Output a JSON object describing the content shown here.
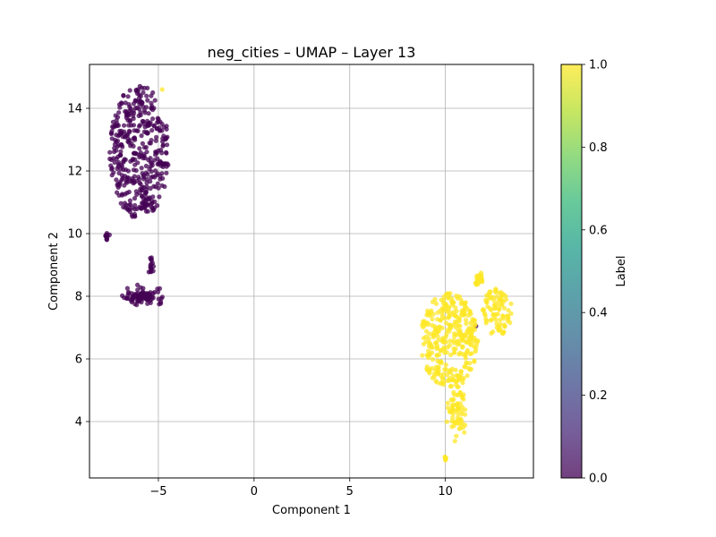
{
  "chart_data": {
    "type": "scatter",
    "title": "neg_cities – UMAP – Layer 13",
    "xlabel": "Component 1",
    "ylabel": "Component 2",
    "xlim": [
      -8.6,
      14.6
    ],
    "ylim": [
      2.2,
      15.4
    ],
    "xticks": [
      -5,
      0,
      5,
      10
    ],
    "xtick_labels": [
      "−5",
      "0",
      "5",
      "10"
    ],
    "yticks": [
      4,
      6,
      8,
      10,
      12,
      14
    ],
    "ytick_labels": [
      "4",
      "6",
      "8",
      "10",
      "12",
      "14"
    ],
    "grid": true,
    "marker_alpha": 0.75,
    "colorbar": {
      "label": "Label",
      "range": [
        0.0,
        1.0
      ],
      "ticks": [
        0.0,
        0.2,
        0.4,
        0.6,
        0.8,
        1.0
      ],
      "tick_labels": [
        "0.0",
        "0.2",
        "0.4",
        "0.6",
        "0.8",
        "1.0"
      ],
      "colormap": [
        "#440154",
        "#482878",
        "#3e4989",
        "#31688e",
        "#26828e",
        "#1f9e89",
        "#35b779",
        "#6ece58",
        "#b5de2b",
        "#fde725"
      ]
    },
    "series": [
      {
        "label_value": 0,
        "color": "#440154",
        "clusters": [
          {
            "kind": "ellipse",
            "n": 420,
            "cx": -6.0,
            "cy": 12.6,
            "rx": 1.55,
            "ry": 2.15
          },
          {
            "kind": "blob",
            "n": 12,
            "cx": -7.7,
            "cy": 9.9,
            "sx": 0.05,
            "sy": 0.08
          },
          {
            "kind": "blob",
            "n": 5,
            "cx": -5.4,
            "cy": 8.8,
            "sx": 0.08,
            "sy": 0.08
          },
          {
            "kind": "blob",
            "n": 10,
            "cx": -5.35,
            "cy": 9.05,
            "sx": 0.05,
            "sy": 0.12
          },
          {
            "kind": "blob",
            "n": 90,
            "cx": -5.8,
            "cy": 8.0,
            "sx": 0.45,
            "sy": 0.13
          },
          {
            "kind": "blob",
            "n": 1,
            "cx": 11.6,
            "cy": 7.05,
            "sx": 0.0,
            "sy": 0.0
          }
        ]
      },
      {
        "label_value": 1,
        "color": "#fde725",
        "clusters": [
          {
            "kind": "ellipse",
            "n": 330,
            "cx": 10.2,
            "cy": 6.6,
            "rx": 1.5,
            "ry": 1.5
          },
          {
            "kind": "ellipse",
            "n": 90,
            "cx": 12.7,
            "cy": 7.5,
            "rx": 0.8,
            "ry": 0.75
          },
          {
            "kind": "blob",
            "n": 30,
            "cx": 11.8,
            "cy": 8.55,
            "sx": 0.12,
            "sy": 0.15
          },
          {
            "kind": "blob",
            "n": 70,
            "cx": 10.6,
            "cy": 4.4,
            "sx": 0.22,
            "sy": 0.45
          },
          {
            "kind": "blob",
            "n": 6,
            "cx": 10.0,
            "cy": 2.8,
            "sx": 0.04,
            "sy": 0.05
          },
          {
            "kind": "blob",
            "n": 1,
            "cx": -4.8,
            "cy": 14.6,
            "sx": 0.0,
            "sy": 0.0
          }
        ]
      }
    ]
  }
}
